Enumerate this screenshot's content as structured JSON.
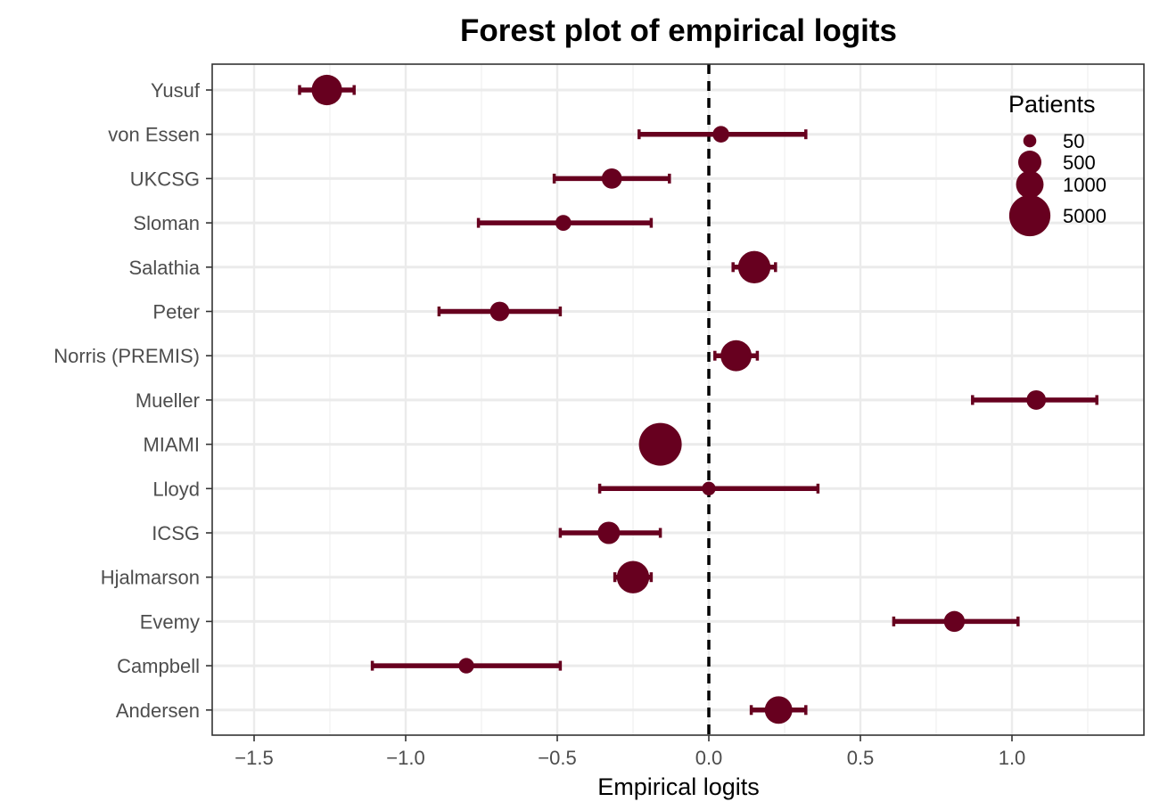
{
  "chart_data": {
    "type": "forest",
    "title": "Forest plot of empirical logits",
    "xlabel": "Empirical logits",
    "ylabel": "",
    "xlim": [
      -1.63,
      1.45
    ],
    "xticks": [
      -1.5,
      -1.0,
      -0.5,
      0.0,
      0.5,
      1.0
    ],
    "xtick_labels": [
      "−1.5",
      "−1.0",
      "−0.5",
      "0.0",
      "0.5",
      "1.0"
    ],
    "reference_line": 0,
    "grid": true,
    "point_color": "#67001f",
    "studies": [
      {
        "name": "Yusuf",
        "estimate": -1.26,
        "lower": -1.35,
        "upper": -1.17,
        "patients": 1500
      },
      {
        "name": "von Essen",
        "estimate": 0.04,
        "lower": -0.23,
        "upper": 0.32,
        "patients": 130
      },
      {
        "name": "UKCSG",
        "estimate": -0.32,
        "lower": -0.51,
        "upper": -0.13,
        "patients": 290
      },
      {
        "name": "Sloman",
        "estimate": -0.48,
        "lower": -0.76,
        "upper": -0.19,
        "patients": 110
      },
      {
        "name": "Salathia",
        "estimate": 0.15,
        "lower": 0.08,
        "upper": 0.22,
        "patients": 1900
      },
      {
        "name": "Peter",
        "estimate": -0.69,
        "lower": -0.89,
        "upper": -0.49,
        "patients": 250
      },
      {
        "name": "Norris (PREMIS)",
        "estimate": 0.09,
        "lower": 0.02,
        "upper": 0.16,
        "patients": 1600
      },
      {
        "name": "Mueller",
        "estimate": 1.08,
        "lower": 0.87,
        "upper": 1.28,
        "patients": 250
      },
      {
        "name": "MIAMI",
        "estimate": -0.16,
        "lower": -0.19,
        "upper": -0.13,
        "patients": 5800
      },
      {
        "name": "Lloyd",
        "estimate": 0.0,
        "lower": -0.36,
        "upper": 0.36,
        "patients": 60
      },
      {
        "name": "ICSG",
        "estimate": -0.33,
        "lower": -0.49,
        "upper": -0.16,
        "patients": 430
      },
      {
        "name": "Hjalmarson",
        "estimate": -0.25,
        "lower": -0.31,
        "upper": -0.19,
        "patients": 1900
      },
      {
        "name": "Evemy",
        "estimate": 0.81,
        "lower": 0.61,
        "upper": 1.02,
        "patients": 330
      },
      {
        "name": "Campbell",
        "estimate": -0.8,
        "lower": -1.11,
        "upper": -0.49,
        "patients": 100
      },
      {
        "name": "Andersen",
        "estimate": 0.23,
        "lower": 0.14,
        "upper": 0.32,
        "patients": 1000
      }
    ],
    "legend": {
      "title": "Patients",
      "position": "top-right",
      "entries": [
        {
          "label": "50",
          "value": 50
        },
        {
          "label": "500",
          "value": 500
        },
        {
          "label": "1000",
          "value": 1000
        },
        {
          "label": "5000",
          "value": 5000
        }
      ]
    }
  }
}
